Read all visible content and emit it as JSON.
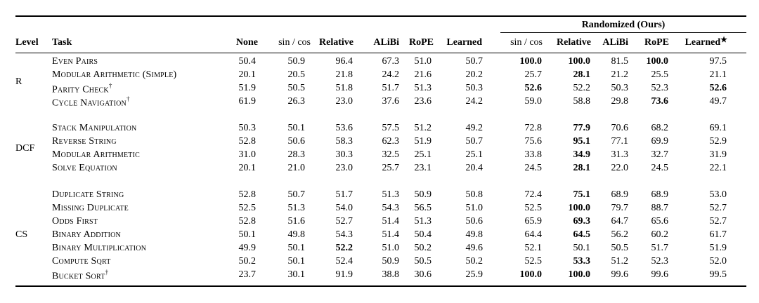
{
  "group_header": "Randomized (Ours)",
  "headers": [
    "Level",
    "Task",
    "None",
    "sin / cos",
    "Relative",
    "ALiBi",
    "RoPE",
    "Learned",
    "sin / cos",
    "Relative",
    "ALiBi",
    "RoPE",
    "Learned"
  ],
  "learned_star": "★",
  "groups": [
    {
      "level": "R",
      "rows": [
        {
          "task": "Even Pairs",
          "dagger": "",
          "values": [
            "50.4",
            "50.9",
            "96.4",
            "67.3",
            "51.0",
            "50.7",
            "100.0",
            "100.0",
            "81.5",
            "100.0",
            "97.5"
          ],
          "bold": [
            6,
            7,
            9
          ]
        },
        {
          "task": "Modular Arithmetic (Simple)",
          "dagger": "",
          "values": [
            "20.1",
            "20.5",
            "21.8",
            "24.2",
            "21.6",
            "20.2",
            "25.7",
            "28.1",
            "21.2",
            "25.5",
            "21.1"
          ],
          "bold": [
            7
          ]
        },
        {
          "task": "Parity Check",
          "dagger": "†",
          "values": [
            "51.9",
            "50.5",
            "51.8",
            "51.7",
            "51.3",
            "50.3",
            "52.6",
            "52.2",
            "50.3",
            "52.3",
            "52.6"
          ],
          "bold": [
            6,
            10
          ]
        },
        {
          "task": "Cycle Navigation",
          "dagger": "†",
          "values": [
            "61.9",
            "26.3",
            "23.0",
            "37.6",
            "23.6",
            "24.2",
            "59.0",
            "58.8",
            "29.8",
            "73.6",
            "49.7"
          ],
          "bold": [
            9
          ]
        }
      ]
    },
    {
      "level": "DCF",
      "rows": [
        {
          "task": "Stack Manipulation",
          "dagger": "",
          "values": [
            "50.3",
            "50.1",
            "53.6",
            "57.5",
            "51.2",
            "49.2",
            "72.8",
            "77.9",
            "70.6",
            "68.2",
            "69.1"
          ],
          "bold": [
            7
          ]
        },
        {
          "task": "Reverse String",
          "dagger": "",
          "values": [
            "52.8",
            "50.6",
            "58.3",
            "62.3",
            "51.9",
            "50.7",
            "75.6",
            "95.1",
            "77.1",
            "69.9",
            "52.9"
          ],
          "bold": [
            7
          ]
        },
        {
          "task": "Modular Arithmetic",
          "dagger": "",
          "values": [
            "31.0",
            "28.3",
            "30.3",
            "32.5",
            "25.1",
            "25.1",
            "33.8",
            "34.9",
            "31.3",
            "32.7",
            "31.9"
          ],
          "bold": [
            7
          ]
        },
        {
          "task": "Solve Equation",
          "dagger": "",
          "values": [
            "20.1",
            "21.0",
            "23.0",
            "25.7",
            "23.1",
            "20.4",
            "24.5",
            "28.1",
            "22.0",
            "24.5",
            "22.1"
          ],
          "bold": [
            7
          ]
        }
      ]
    },
    {
      "level": "CS",
      "rows": [
        {
          "task": "Duplicate String",
          "dagger": "",
          "values": [
            "52.8",
            "50.7",
            "51.7",
            "51.3",
            "50.9",
            "50.8",
            "72.4",
            "75.1",
            "68.9",
            "68.9",
            "53.0"
          ],
          "bold": [
            7
          ]
        },
        {
          "task": "Missing Duplicate",
          "dagger": "",
          "values": [
            "52.5",
            "51.3",
            "54.0",
            "54.3",
            "56.5",
            "51.0",
            "52.5",
            "100.0",
            "79.7",
            "88.7",
            "52.7"
          ],
          "bold": [
            7
          ]
        },
        {
          "task": "Odds First",
          "dagger": "",
          "values": [
            "52.8",
            "51.6",
            "52.7",
            "51.4",
            "51.3",
            "50.6",
            "65.9",
            "69.3",
            "64.7",
            "65.6",
            "52.7"
          ],
          "bold": [
            7
          ]
        },
        {
          "task": "Binary Addition",
          "dagger": "",
          "values": [
            "50.1",
            "49.8",
            "54.3",
            "51.4",
            "50.4",
            "49.8",
            "64.4",
            "64.5",
            "56.2",
            "60.2",
            "61.7"
          ],
          "bold": [
            7
          ]
        },
        {
          "task": "Binary Multiplication",
          "dagger": "",
          "values": [
            "49.9",
            "50.1",
            "52.2",
            "51.0",
            "50.2",
            "49.6",
            "52.1",
            "50.1",
            "50.5",
            "51.7",
            "51.9"
          ],
          "bold": [
            2
          ]
        },
        {
          "task": "Compute Sqrt",
          "dagger": "",
          "values": [
            "50.2",
            "50.1",
            "52.4",
            "50.9",
            "50.5",
            "50.2",
            "52.5",
            "53.3",
            "51.2",
            "52.3",
            "52.0"
          ],
          "bold": [
            7
          ]
        },
        {
          "task": "Bucket Sort",
          "dagger": "†",
          "values": [
            "23.7",
            "30.1",
            "91.9",
            "38.8",
            "30.6",
            "25.9",
            "100.0",
            "100.0",
            "99.6",
            "99.6",
            "99.5"
          ],
          "bold": [
            6,
            7
          ]
        }
      ]
    }
  ]
}
